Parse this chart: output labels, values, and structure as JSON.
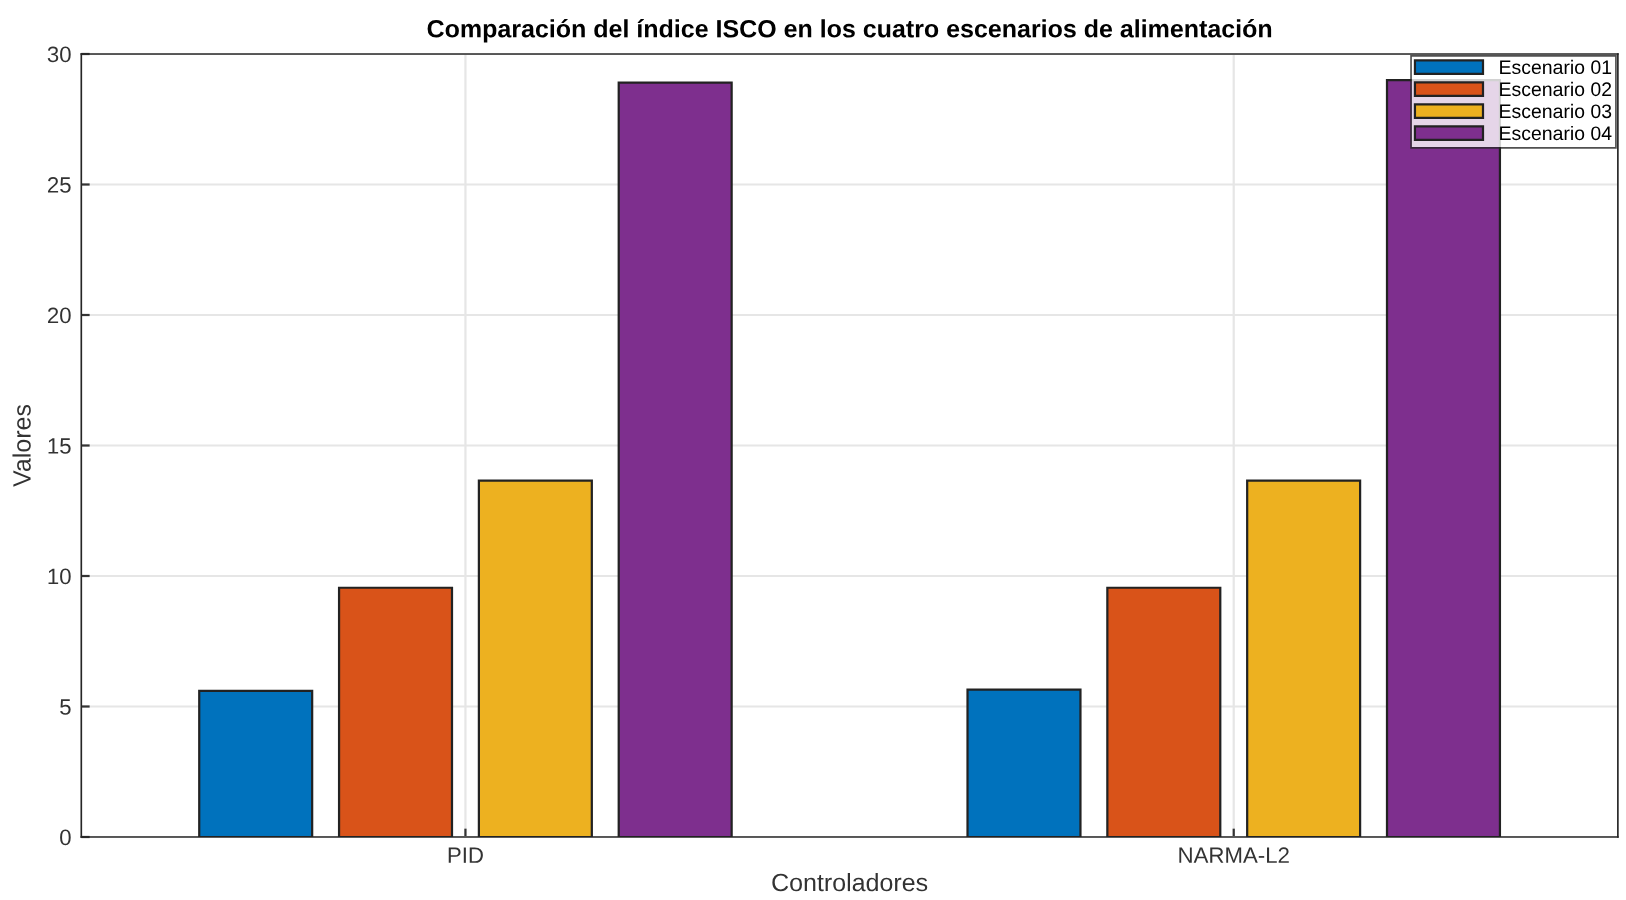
{
  "chart_data": {
    "type": "bar",
    "title": "Comparación del índice ISCO en los cuatro escenarios de alimentación",
    "xlabel": "Controladores",
    "ylabel": "Valores",
    "categories": [
      "PID",
      "NARMA-L2"
    ],
    "series": [
      {
        "name": "Escenario 01",
        "color": "#0072bd",
        "values": [
          5.6,
          5.65
        ]
      },
      {
        "name": "Escenario 02",
        "color": "#d95319",
        "values": [
          9.55,
          9.55
        ]
      },
      {
        "name": "Escenario 03",
        "color": "#edb120",
        "values": [
          13.65,
          13.65
        ]
      },
      {
        "name": "Escenario 04",
        "color": "#7e2f8e",
        "values": [
          28.9,
          29.0
        ]
      }
    ],
    "ylim": [
      0,
      30
    ],
    "yticks": [
      0,
      5,
      10,
      15,
      20,
      25,
      30
    ],
    "grid": true,
    "legend": "top right"
  }
}
